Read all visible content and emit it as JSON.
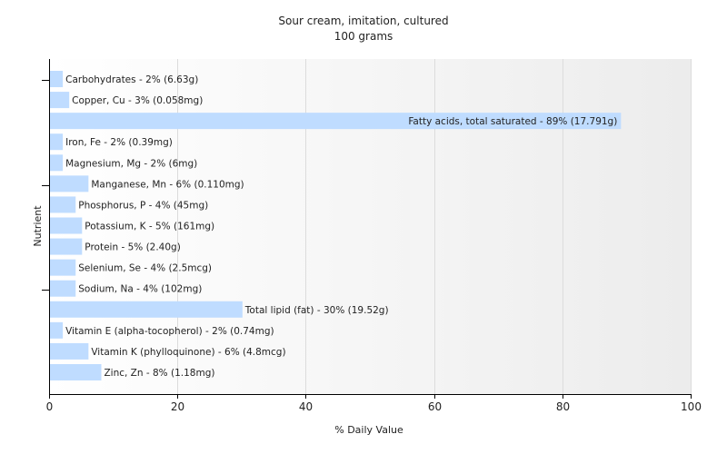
{
  "chart_data": {
    "type": "bar",
    "orientation": "horizontal",
    "title": "Sour cream, imitation, cultured",
    "subtitle": "100 grams",
    "xlabel": "% Daily Value",
    "ylabel": "Nutrient",
    "xlim": [
      0,
      100
    ],
    "xticks": [
      0,
      20,
      40,
      60,
      80,
      100
    ],
    "grid": true,
    "bar_color": "#bfdcff",
    "categories": [
      "Carbohydrates",
      "Copper, Cu",
      "Fatty acids, total saturated",
      "Iron, Fe",
      "Magnesium, Mg",
      "Manganese, Mn",
      "Phosphorus, P",
      "Potassium, K",
      "Protein",
      "Selenium, Se",
      "Sodium, Na",
      "Total lipid (fat)",
      "Vitamin E (alpha-tocopherol)",
      "Vitamin K (phylloquinone)",
      "Zinc, Zn"
    ],
    "values": [
      2,
      3,
      89,
      2,
      2,
      6,
      4,
      5,
      5,
      4,
      4,
      30,
      2,
      6,
      8
    ],
    "labels": [
      "Carbohydrates - 2% (6.63g)",
      "Copper, Cu - 3% (0.058mg)",
      "Fatty acids, total saturated - 89% (17.791g)",
      "Iron, Fe - 2% (0.39mg)",
      "Magnesium, Mg - 2% (6mg)",
      "Manganese, Mn - 6% (0.110mg)",
      "Phosphorus, P - 4% (45mg)",
      "Potassium, K - 5% (161mg)",
      "Protein - 5% (2.40g)",
      "Selenium, Se - 4% (2.5mcg)",
      "Sodium, Na - 4% (102mg)",
      "Total lipid (fat) - 30% (19.52g)",
      "Vitamin E (alpha-tocopherol) - 2% (0.74mg)",
      "Vitamin K (phylloquinone) - 6% (4.8mcg)",
      "Zinc, Zn - 8% (1.18mg)"
    ]
  }
}
